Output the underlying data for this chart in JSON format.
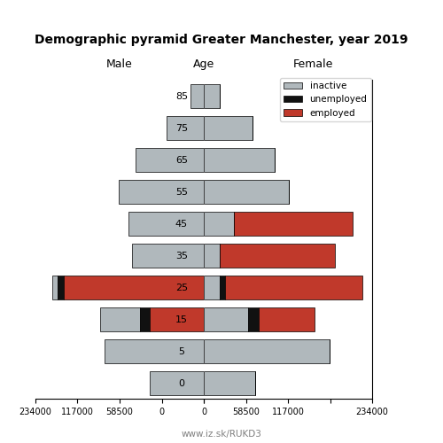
{
  "title": "Demographic pyramid Greater Manchester, year 2019",
  "subtitle": "www.iz.sk/RUKD3",
  "age_groups": [
    0,
    5,
    15,
    25,
    35,
    45,
    55,
    65,
    75,
    85
  ],
  "male": {
    "employed": [
      0,
      0,
      75000,
      195000,
      0,
      0,
      0,
      0,
      0,
      0
    ],
    "unemployed": [
      0,
      0,
      14000,
      8000,
      0,
      0,
      0,
      0,
      0,
      0
    ],
    "inactive": [
      75000,
      138000,
      55000,
      8000,
      100000,
      105000,
      118000,
      95000,
      52000,
      18000
    ]
  },
  "female": {
    "employed": [
      0,
      0,
      78000,
      190000,
      160000,
      165000,
      0,
      0,
      0,
      0
    ],
    "unemployed": [
      0,
      0,
      14000,
      8000,
      0,
      0,
      0,
      0,
      0,
      0
    ],
    "inactive": [
      72000,
      175000,
      62000,
      22000,
      22000,
      42000,
      118000,
      98000,
      68000,
      22000
    ]
  },
  "colors": {
    "inactive": "#b0b8bc",
    "unemployed": "#111111",
    "employed": "#c0392b"
  },
  "xlim": 234000,
  "bar_height": 0.75
}
